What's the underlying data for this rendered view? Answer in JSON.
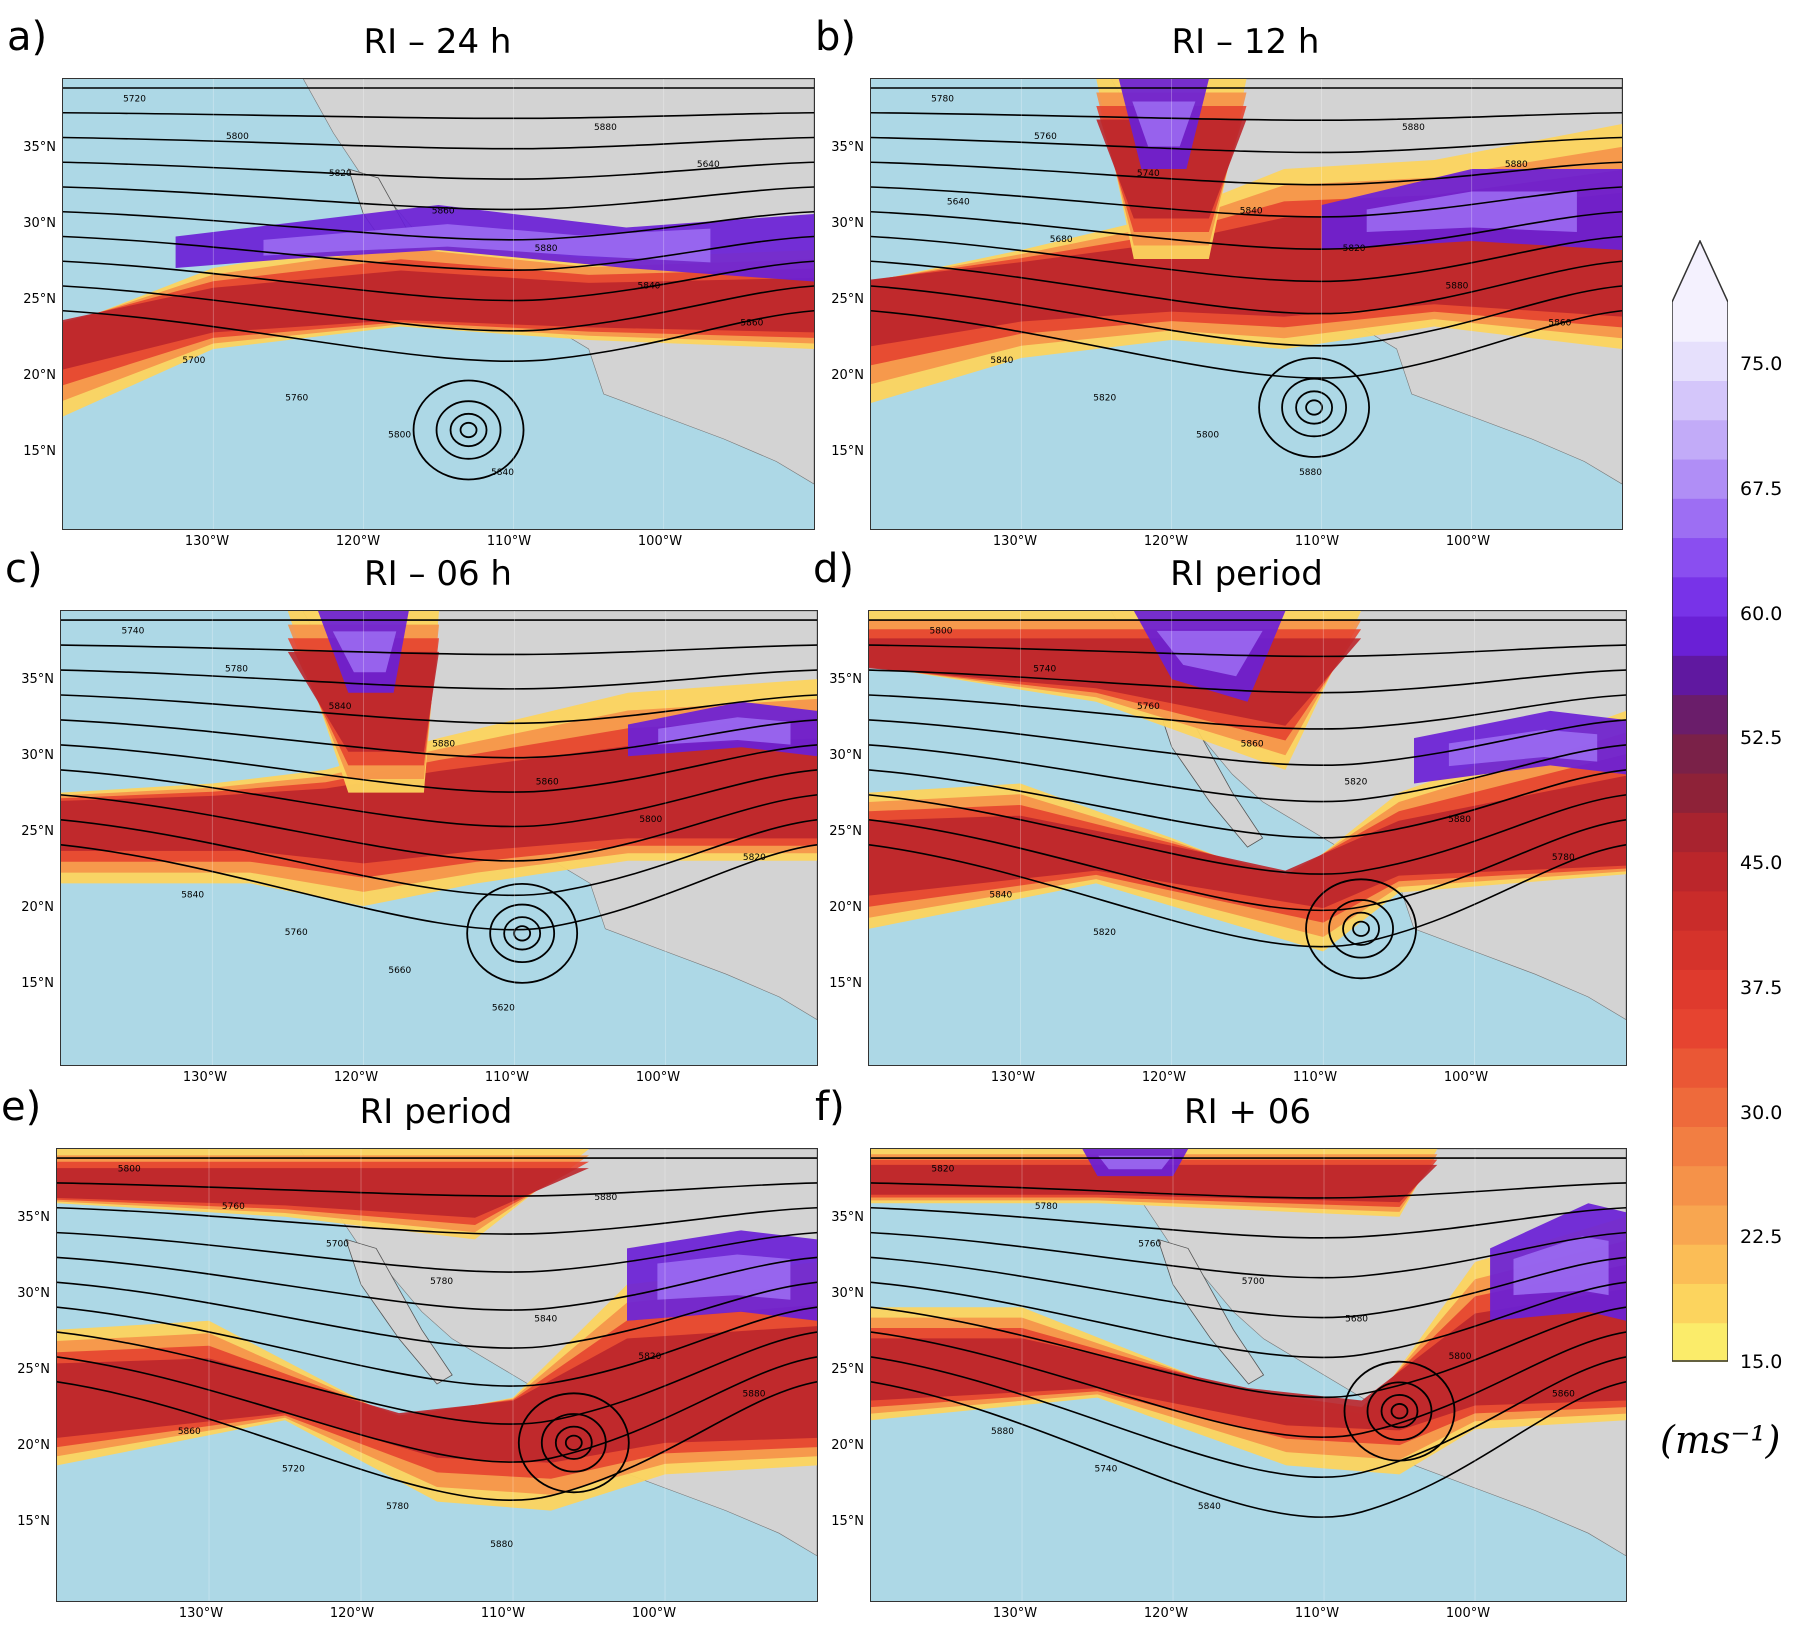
{
  "figure": {
    "units_label": "(ms⁻¹)"
  },
  "colors": {
    "ocean": "#add8e6",
    "land": "#d3d3d3",
    "contour": "#000000"
  },
  "panels": [
    {
      "letter": "a)",
      "title": "RI – 24 h",
      "lat_ticks": [
        "35°N",
        "30°N",
        "25°N",
        "20°N",
        "15°N"
      ],
      "lon_ticks": [
        "130°W",
        "120°W",
        "110°W",
        "100°W"
      ],
      "contour_labels": [
        "5720",
        "5800",
        "5820",
        "5860",
        "5880",
        "5840",
        "5860",
        "5700",
        "5760",
        "5800",
        "5840",
        "5880",
        "5640"
      ]
    },
    {
      "letter": "b)",
      "title": "RI – 12 h",
      "lat_ticks": [
        "35°N",
        "30°N",
        "25°N",
        "20°N",
        "15°N"
      ],
      "lon_ticks": [
        "130°W",
        "120°W",
        "110°W",
        "100°W"
      ],
      "contour_labels": [
        "5780",
        "5760",
        "5740",
        "5840",
        "5820",
        "5880",
        "5860",
        "5840",
        "5820",
        "5800",
        "5880",
        "5880",
        "5880",
        "5640",
        "5680"
      ]
    },
    {
      "letter": "c)",
      "title": "RI – 06 h",
      "lat_ticks": [
        "35°N",
        "30°N",
        "25°N",
        "20°N",
        "15°N"
      ],
      "lon_ticks": [
        "130°W",
        "120°W",
        "110°W",
        "100°W"
      ],
      "contour_labels": [
        "5740",
        "5780",
        "5840",
        "5880",
        "5860",
        "5800",
        "5820",
        "5840",
        "5760",
        "5660",
        "5620"
      ]
    },
    {
      "letter": "d)",
      "title": "RI period",
      "lat_ticks": [
        "35°N",
        "30°N",
        "25°N",
        "20°N",
        "15°N"
      ],
      "lon_ticks": [
        "130°W",
        "120°W",
        "110°W",
        "100°W"
      ],
      "contour_labels": [
        "5800",
        "5740",
        "5760",
        "5860",
        "5820",
        "5880",
        "5780",
        "5840",
        "5820"
      ]
    },
    {
      "letter": "e)",
      "title": "RI period",
      "lat_ticks": [
        "35°N",
        "30°N",
        "25°N",
        "20°N",
        "15°N"
      ],
      "lon_ticks": [
        "130°W",
        "120°W",
        "110°W",
        "100°W"
      ],
      "contour_labels": [
        "5800",
        "5760",
        "5700",
        "5780",
        "5840",
        "5820",
        "5880",
        "5860",
        "5720",
        "5780",
        "5880",
        "5880"
      ]
    },
    {
      "letter": "f)",
      "title": "RI + 06",
      "lat_ticks": [
        "35°N",
        "30°N",
        "25°N",
        "20°N",
        "15°N"
      ],
      "lon_ticks": [
        "130°W",
        "120°W",
        "110°W",
        "100°W"
      ],
      "contour_labels": [
        "5820",
        "5780",
        "5760",
        "5700",
        "5680",
        "5800",
        "5860",
        "5880",
        "5740",
        "5840"
      ]
    }
  ],
  "colorbar": {
    "ticks": [
      "75.0",
      "67.5",
      "60.0",
      "52.5",
      "45.0",
      "37.5",
      "30.0",
      "22.5",
      "15.0"
    ],
    "min": 15.0,
    "max": 78.75,
    "extend": "max",
    "colors": [
      "#fbec6a",
      "#fcd45e",
      "#fbbd56",
      "#f8a650",
      "#f59249",
      "#f27e42",
      "#ee6a3b",
      "#ea5735",
      "#e64430",
      "#df3a2d",
      "#d5332b",
      "#c92c2a",
      "#bb262b",
      "#a8232f",
      "#8e2238",
      "#7a2148",
      "#6a1d6a",
      "#6018a0",
      "#6a20d6",
      "#7833e8",
      "#8a4ef0",
      "#9d6ef3",
      "#b08ef6",
      "#c2abf8",
      "#d4c6fa",
      "#e6e0fc",
      "#f4f1fe"
    ]
  }
}
